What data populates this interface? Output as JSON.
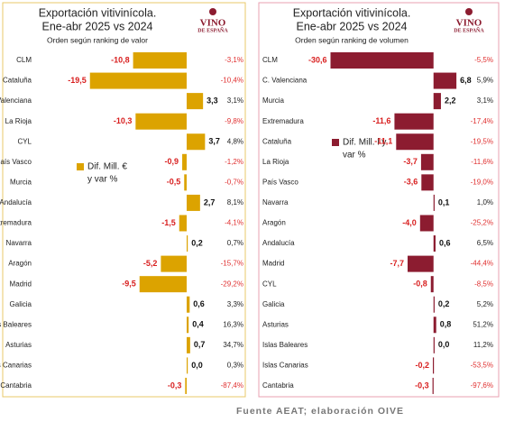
{
  "chart_data": [
    {
      "type": "diverging-bar",
      "title_lines": [
        "Exportación vitivinícola.",
        "Ene-abr 2025 vs 2024"
      ],
      "subtitle": "Orden según ranking de valor",
      "logo": [
        "VINO",
        "DE ESPAÑA"
      ],
      "legend_lines": [
        "Dif. Mill. €",
        "y var %"
      ],
      "color": "#dca300",
      "categories": [
        "CLM",
        "Cataluña",
        "C. Valenciana",
        "La Rioja",
        "CYL",
        "País Vasco",
        "Murcia",
        "Andalucía",
        "Extremadura",
        "Navarra",
        "Aragón",
        "Madrid",
        "Galicia",
        "Islas Baleares",
        "Asturias",
        "Islas Canarias",
        "Cantabria"
      ],
      "values": [
        -10.8,
        -19.5,
        3.3,
        -10.3,
        3.7,
        -0.9,
        -0.5,
        2.7,
        -1.5,
        0.2,
        -5.2,
        -9.5,
        0.6,
        0.4,
        0.7,
        0.0,
        -0.3
      ],
      "value_labels": [
        "-10,8",
        "-19,5",
        "3,3",
        "-10,3",
        "3,7",
        "-0,9",
        "-0,5",
        "2,7",
        "-1,5",
        "0,2",
        "-5,2",
        "-9,5",
        "0,6",
        "0,4",
        "0,7",
        "0,0",
        "-0,3"
      ],
      "pct": [
        -3.1,
        -10.4,
        3.1,
        -9.8,
        4.8,
        -1.2,
        -0.7,
        8.1,
        -4.1,
        0.7,
        -15.7,
        -29.2,
        3.3,
        16.3,
        34.7,
        0.3,
        -87.4
      ],
      "pct_labels": [
        "-3,1%",
        "-10,4%",
        "3,1%",
        "-9,8%",
        "4,8%",
        "-1,2%",
        "-0,7%",
        "8,1%",
        "-4,1%",
        "0,7%",
        "-15,7%",
        "-29,2%",
        "3,3%",
        "16,3%",
        "34,7%",
        "0,3%",
        "-87,4%"
      ],
      "xlim": [
        -20,
        7
      ]
    },
    {
      "type": "diverging-bar",
      "title_lines": [
        "Exportación vitivinícola.",
        "Ene-abr 2025 vs 2024"
      ],
      "subtitle": "Orden según ranking de volumen",
      "logo": [
        "VINO",
        "DE ESPAÑA"
      ],
      "legend_lines": [
        "Dif. Mill. l y",
        "var %"
      ],
      "color": "#8c1c30",
      "categories": [
        "CLM",
        "C. Valenciana",
        "Murcia",
        "Extremadura",
        "Cataluña",
        "La Rioja",
        "País Vasco",
        "Navarra",
        "Aragón",
        "Andalucía",
        "Madrid",
        "CYL",
        "Galicia",
        "Asturias",
        "Islas Baleares",
        "Islas Canarias",
        "Cantabria"
      ],
      "values": [
        -30.6,
        6.8,
        2.2,
        -11.6,
        -11.1,
        -3.7,
        -3.6,
        0.1,
        -4.0,
        0.6,
        -7.7,
        -0.8,
        0.2,
        0.8,
        0.0,
        -0.2,
        -0.3
      ],
      "value_labels": [
        "-30,6",
        "6,8",
        "2,2",
        "-11,6",
        "-11,1",
        "-3,7",
        "-3,6",
        "0,1",
        "-4,0",
        "0,6",
        "-7,7",
        "-0,8",
        "0,2",
        "0,8",
        "0,0",
        "-0,2",
        "-0,3"
      ],
      "pct": [
        -5.5,
        5.9,
        3.1,
        -17.4,
        -19.5,
        -11.6,
        -19.0,
        1.0,
        -25.2,
        6.5,
        -44.4,
        -8.5,
        5.2,
        51.2,
        11.2,
        -53.5,
        -97.6
      ],
      "pct_labels": [
        "-5,5%",
        "5,9%",
        "3,1%",
        "-17,4%",
        "-19,5%",
        "-11,6%",
        "-19,0%",
        "1,0%",
        "-25,2%",
        "6,5%",
        "-44,4%",
        "-8,5%",
        "5,2%",
        "51,2%",
        "11,2%",
        "-53,5%",
        "-97,6%"
      ],
      "xlim": [
        -31,
        8
      ]
    }
  ],
  "source": "Fuente AEAT; elaboración OIVE"
}
